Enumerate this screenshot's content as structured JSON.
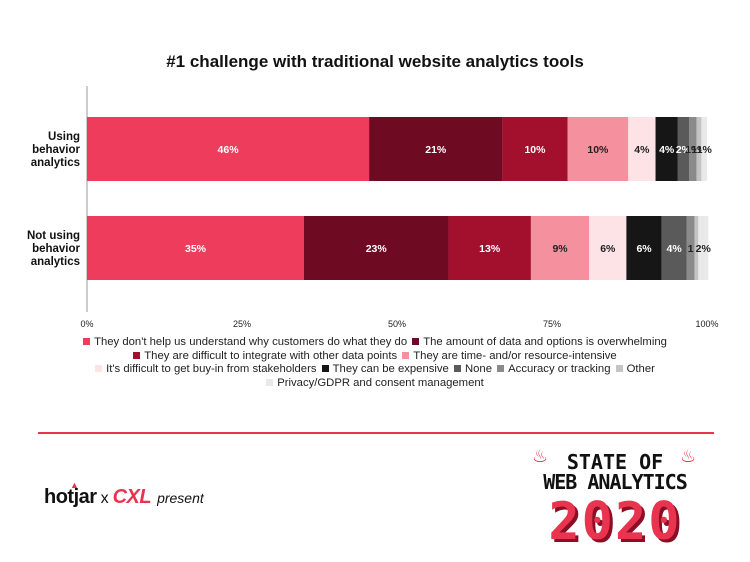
{
  "chart_data": {
    "type": "bar",
    "orientation": "horizontal",
    "stacked": true,
    "title": "#1 challenge with traditional website analytics tools",
    "categories": [
      "Using behavior analytics",
      "Not using behavior analytics"
    ],
    "category_lines": [
      [
        "Using",
        "behavior",
        "analytics"
      ],
      [
        "Not using",
        "behavior",
        "analytics"
      ]
    ],
    "xlim": [
      0,
      100
    ],
    "x_ticks": [
      "0%",
      "25%",
      "50%",
      "75%",
      "100%"
    ],
    "series": [
      {
        "name": "They don't help us understand why customers do what they do",
        "color": "#ee3d5c",
        "values": [
          45.5,
          35
        ],
        "labels": [
          "46%",
          "35%"
        ],
        "label_color": "#ffffff"
      },
      {
        "name": "The amount of data and options is overwhelming",
        "color": "#6e0a22",
        "values": [
          21.5,
          23.3
        ],
        "labels": [
          "21%",
          "23%"
        ],
        "label_color": "#ffffff"
      },
      {
        "name": "They are difficult to integrate with other data points",
        "color": "#a3102e",
        "values": [
          10.5,
          13.3
        ],
        "labels": [
          "10%",
          "13%"
        ],
        "label_color": "#ffffff"
      },
      {
        "name": "They are time- and/or resource-intensive",
        "color": "#f5909f",
        "values": [
          9.8,
          9.4
        ],
        "labels": [
          "10%",
          "9%"
        ],
        "label_color": "#222222"
      },
      {
        "name": "It's difficult to get buy-in from stakeholders",
        "color": "#fde2e6",
        "values": [
          4.4,
          6.0
        ],
        "labels": [
          "4%",
          "6%"
        ],
        "label_color": "#222222"
      },
      {
        "name": "They can be expensive",
        "color": "#161616",
        "values": [
          3.6,
          5.7
        ],
        "labels": [
          "4%",
          "6%"
        ],
        "label_color": "#ffffff"
      },
      {
        "name": "None",
        "color": "#5a5a5a",
        "values": [
          1.8,
          4.0
        ],
        "labels": [
          "2%",
          "4%"
        ],
        "label_color": "#ffffff"
      },
      {
        "name": "Accuracy or tracking",
        "color": "#8a8a8a",
        "values": [
          1.2,
          1.3
        ],
        "labels": [
          "1%",
          "1"
        ],
        "label_color": "#222222"
      },
      {
        "name": "Other",
        "color": "#c4c4c4",
        "values": [
          0.8,
          0.6
        ],
        "labels": [
          "1%",
          ""
        ],
        "label_color": "#222222"
      },
      {
        "name": "Privacy/GDPR and consent management",
        "color": "#e9e9e9",
        "values": [
          0.9,
          1.6
        ],
        "labels": [
          "1%",
          "2%"
        ],
        "label_color": "#222222"
      }
    ]
  },
  "footer": {
    "brand_hotjar": "hotjar",
    "brand_x": "x",
    "brand_cxl": "CXL",
    "brand_present": "present",
    "badge_line1": "STATE OF",
    "badge_line2": "WEB ANALYTICS",
    "badge_year": "2020"
  }
}
